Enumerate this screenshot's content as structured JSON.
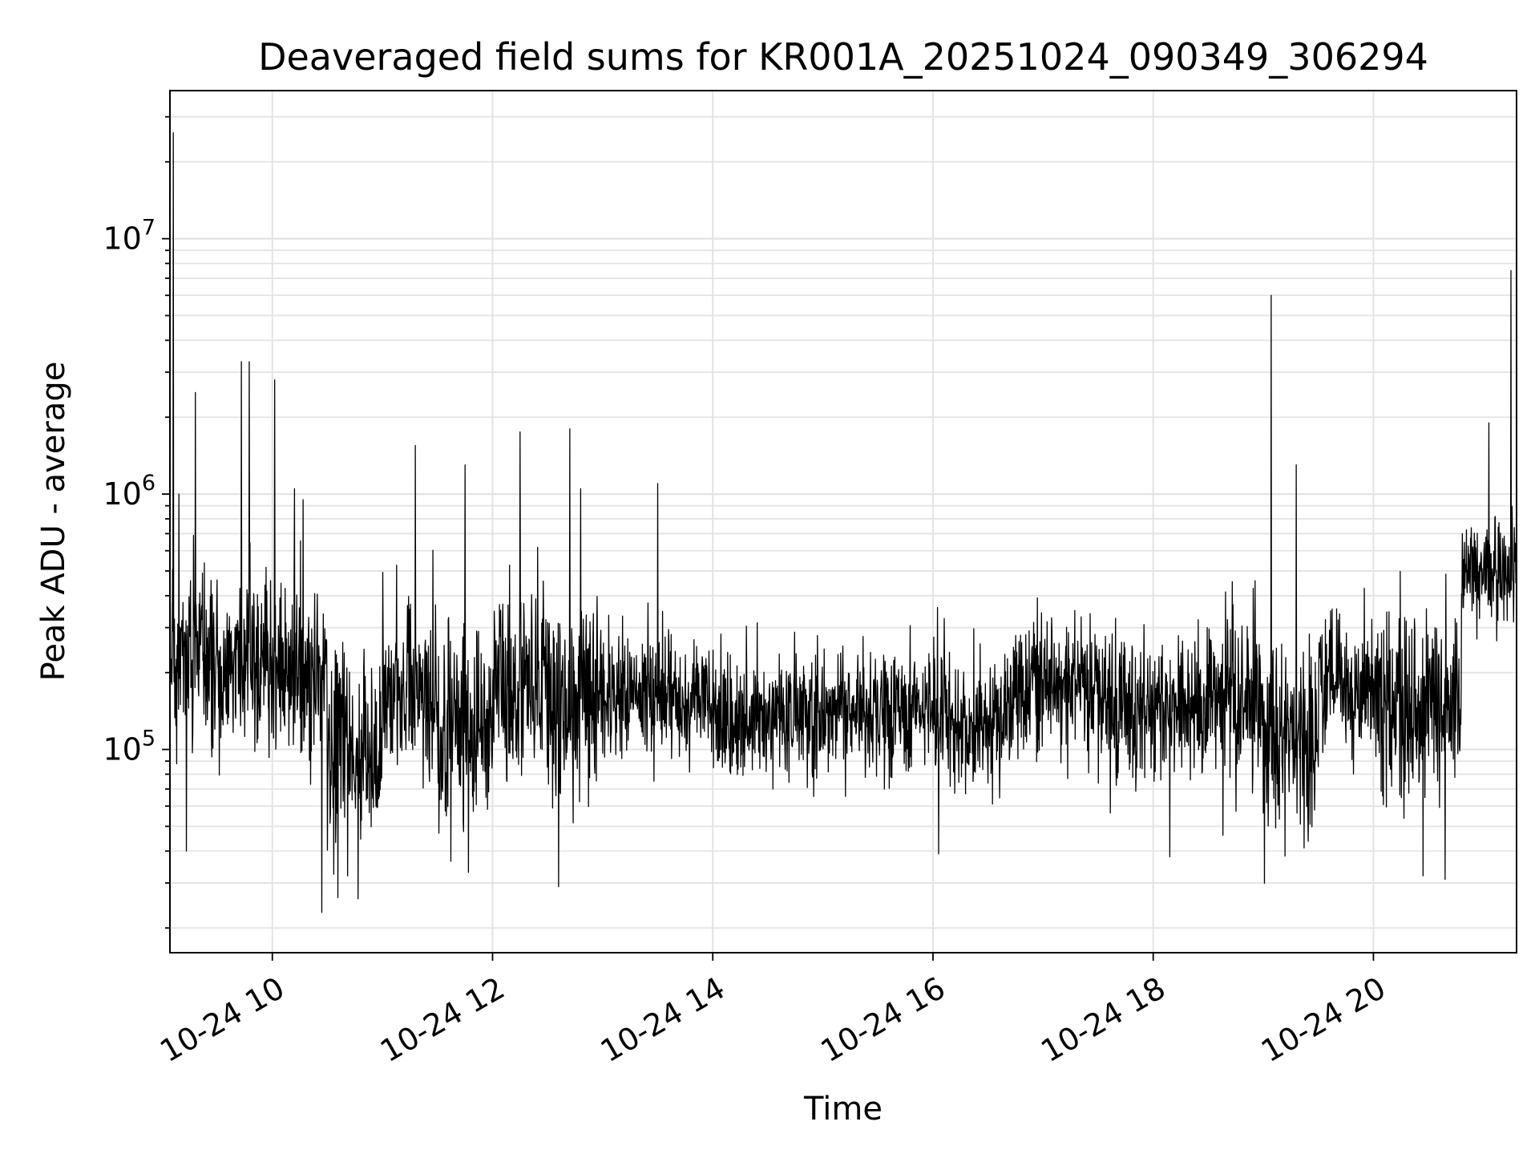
{
  "chart_data": {
    "type": "line",
    "title": "Deaveraged field sums for KR001A_20251024_090349_306294",
    "xlabel": "Time",
    "ylabel": "Peak ADU - average",
    "yscale": "log",
    "xlim_hours": [
      9.07,
      21.3
    ],
    "ylim": [
      16000,
      38000000
    ],
    "grid": true,
    "x_ticks": [
      {
        "hour": 10,
        "label": "10-24 10"
      },
      {
        "hour": 12,
        "label": "10-24 12"
      },
      {
        "hour": 14,
        "label": "10-24 14"
      },
      {
        "hour": 16,
        "label": "10-24 16"
      },
      {
        "hour": 18,
        "label": "10-24 18"
      },
      {
        "hour": 20,
        "label": "10-24 20"
      }
    ],
    "y_ticks": [
      {
        "value": 100000,
        "base": "10",
        "exp": "5"
      },
      {
        "value": 1000000,
        "base": "10",
        "exp": "6"
      },
      {
        "value": 10000000,
        "base": "10",
        "exp": "7"
      }
    ],
    "series": [
      {
        "name": "Peak ADU - average",
        "color": "#000000",
        "segments": [
          {
            "from": 9.07,
            "to": 9.5,
            "median": 230000,
            "spread": 0.55
          },
          {
            "from": 9.5,
            "to": 10.0,
            "median": 220000,
            "spread": 0.5
          },
          {
            "from": 10.0,
            "to": 10.5,
            "median": 210000,
            "spread": 0.55
          },
          {
            "from": 10.5,
            "to": 11.0,
            "median": 95000,
            "spread": 0.6
          },
          {
            "from": 11.0,
            "to": 11.5,
            "median": 170000,
            "spread": 0.55
          },
          {
            "from": 11.5,
            "to": 12.0,
            "median": 110000,
            "spread": 0.65
          },
          {
            "from": 12.0,
            "to": 12.5,
            "median": 190000,
            "spread": 0.6
          },
          {
            "from": 12.5,
            "to": 13.0,
            "median": 150000,
            "spread": 0.6
          },
          {
            "from": 13.0,
            "to": 14.0,
            "median": 160000,
            "spread": 0.38
          },
          {
            "from": 14.0,
            "to": 15.0,
            "median": 135000,
            "spread": 0.38
          },
          {
            "from": 15.0,
            "to": 16.0,
            "median": 140000,
            "spread": 0.38
          },
          {
            "from": 16.0,
            "to": 16.7,
            "median": 130000,
            "spread": 0.42
          },
          {
            "from": 16.7,
            "to": 17.5,
            "median": 180000,
            "spread": 0.45
          },
          {
            "from": 17.5,
            "to": 18.5,
            "median": 140000,
            "spread": 0.45
          },
          {
            "from": 18.5,
            "to": 19.0,
            "median": 170000,
            "spread": 0.5
          },
          {
            "from": 19.0,
            "to": 19.5,
            "median": 110000,
            "spread": 0.55
          },
          {
            "from": 19.5,
            "to": 20.0,
            "median": 180000,
            "spread": 0.5
          },
          {
            "from": 20.0,
            "to": 20.8,
            "median": 150000,
            "spread": 0.5
          },
          {
            "from": 20.8,
            "to": 21.3,
            "median": 500000,
            "spread": 0.3
          }
        ],
        "spikes": [
          {
            "hour": 9.1,
            "value": 26000000
          },
          {
            "hour": 9.15,
            "value": 1000000
          },
          {
            "hour": 9.22,
            "value": 40000
          },
          {
            "hour": 9.3,
            "value": 2500000
          },
          {
            "hour": 9.72,
            "value": 3300000
          },
          {
            "hour": 9.79,
            "value": 3300000
          },
          {
            "hour": 10.02,
            "value": 2800000
          },
          {
            "hour": 10.2,
            "value": 1050000
          },
          {
            "hour": 10.28,
            "value": 950000
          },
          {
            "hour": 10.45,
            "value": 23000
          },
          {
            "hour": 10.78,
            "value": 26000
          },
          {
            "hour": 11.3,
            "value": 1550000
          },
          {
            "hour": 11.75,
            "value": 1300000
          },
          {
            "hour": 11.78,
            "value": 33000
          },
          {
            "hour": 12.25,
            "value": 1750000
          },
          {
            "hour": 12.6,
            "value": 29000
          },
          {
            "hour": 12.7,
            "value": 1800000
          },
          {
            "hour": 12.8,
            "value": 1050000
          },
          {
            "hour": 13.5,
            "value": 1100000
          },
          {
            "hour": 16.05,
            "value": 39000
          },
          {
            "hour": 18.15,
            "value": 38000
          },
          {
            "hour": 19.07,
            "value": 6000000
          },
          {
            "hour": 19.3,
            "value": 1300000
          },
          {
            "hour": 20.45,
            "value": 32000
          },
          {
            "hour": 20.65,
            "value": 31000
          },
          {
            "hour": 21.05,
            "value": 1900000
          },
          {
            "hour": 21.25,
            "value": 7500000
          }
        ]
      }
    ]
  }
}
